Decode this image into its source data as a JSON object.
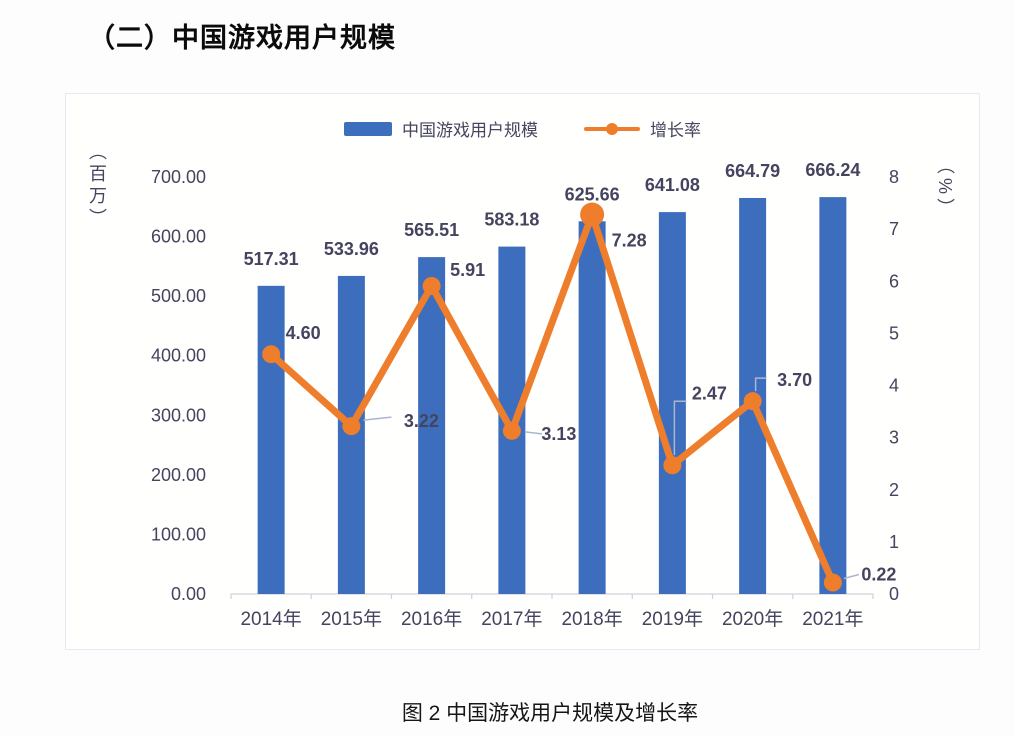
{
  "page": {
    "title": "（二）中国游戏用户规模",
    "caption": "图 2 中国游戏用户规模及增长率"
  },
  "colors": {
    "bar": "#3d6ebd",
    "line": "#ee7e2c",
    "text": "#45445f",
    "axis_line": "#d8d8e0",
    "tick": "#cfcfda",
    "leader": "#aab6cf",
    "card_border": "#e9e9f2",
    "title_text": "#0b0b0b"
  },
  "chart_data": {
    "type": "bar+line",
    "title": "中国游戏用户规模及增长率",
    "categories": [
      "2014年",
      "2015年",
      "2016年",
      "2017年",
      "2018年",
      "2019年",
      "2020年",
      "2021年"
    ],
    "series": [
      {
        "name": "中国游戏用户规模",
        "type": "bar",
        "y_axis": "left",
        "color": "#3d6ebd",
        "values": [
          517.31,
          533.96,
          565.51,
          583.18,
          625.66,
          641.08,
          664.79,
          666.24
        ],
        "labels": [
          "517.31",
          "533.96",
          "565.51",
          "583.18",
          "625.66",
          "641.08",
          "664.79",
          "666.24"
        ]
      },
      {
        "name": "增长率",
        "type": "line",
        "y_axis": "right",
        "color": "#ee7e2c",
        "values": [
          4.6,
          3.22,
          5.91,
          3.13,
          7.28,
          2.47,
          3.7,
          0.22
        ],
        "labels": [
          "4.60",
          "3.22",
          "5.91",
          "3.13",
          "7.28",
          "2.47",
          "3.70",
          "0.22"
        ]
      }
    ],
    "y_left": {
      "unit": "（百万）",
      "min": 0,
      "max": 700,
      "tick_step": 100,
      "tick_labels": [
        "0.00",
        "100.00",
        "200.00",
        "300.00",
        "400.00",
        "500.00",
        "600.00",
        "700.00"
      ]
    },
    "y_right": {
      "unit": "（%）",
      "min": 0,
      "max": 8,
      "tick_step": 1,
      "tick_labels": [
        "0",
        "1",
        "2",
        "3",
        "4",
        "5",
        "6",
        "7",
        "8"
      ]
    },
    "legend": {
      "position": "top",
      "items": [
        "中国游戏用户规模",
        "增长率"
      ]
    },
    "grid": false
  }
}
